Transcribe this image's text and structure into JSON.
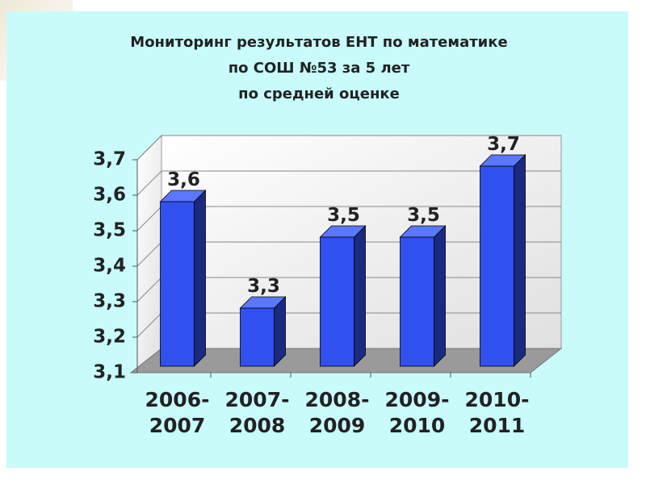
{
  "chart_data": {
    "type": "bar3d",
    "title": [
      "Мониторинг результатов ЕНТ по математике",
      "по СОШ №53 за 5 лет",
      "по средней оценке"
    ],
    "categories": [
      "2006-2007",
      "2007-2008",
      "2008-2009",
      "2009-2010",
      "2010-2011"
    ],
    "values": [
      3.6,
      3.3,
      3.5,
      3.5,
      3.7
    ],
    "value_labels": [
      "3,6",
      "3,3",
      "3,5",
      "3,5",
      "3,7"
    ],
    "color": "#3050f0",
    "ylim": [
      3.1,
      3.7
    ],
    "yticks": [
      {
        "value": 3.1,
        "label": "3,1"
      },
      {
        "value": 3.2,
        "label": "3,2"
      },
      {
        "value": 3.3,
        "label": "3,3"
      },
      {
        "value": 3.4,
        "label": "3,4"
      },
      {
        "value": 3.5,
        "label": "3,5"
      },
      {
        "value": 3.6,
        "label": "3,6"
      },
      {
        "value": 3.7,
        "label": "3,7"
      }
    ],
    "grid": true
  }
}
